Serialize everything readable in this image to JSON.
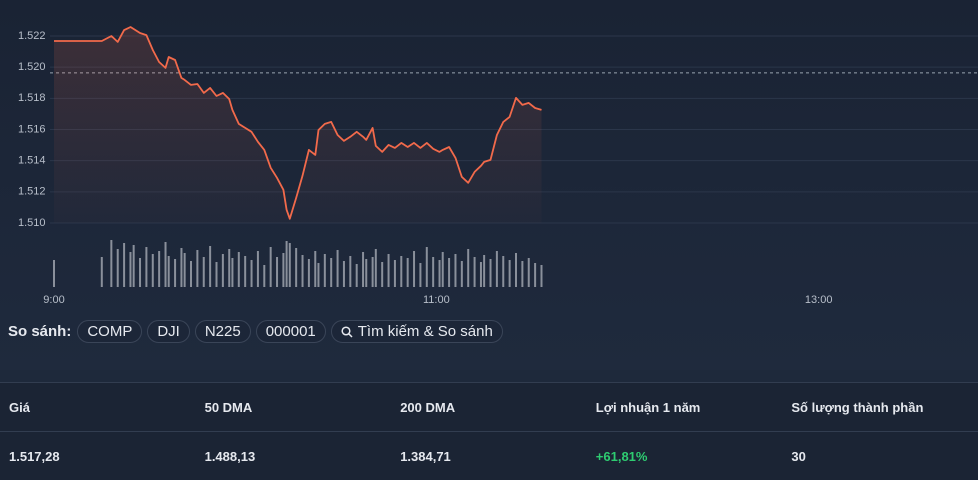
{
  "chart_data": {
    "type": "line",
    "x": [
      "9:00",
      "9:15",
      "9:18",
      "9:20",
      "9:22",
      "9:24",
      "9:25",
      "9:27",
      "9:29",
      "9:31",
      "9:33",
      "9:35",
      "9:36",
      "9:38",
      "9:40",
      "9:41",
      "9:43",
      "9:45",
      "9:47",
      "9:49",
      "9:51",
      "9:53",
      "9:55",
      "9:56",
      "9:58",
      "10:00",
      "10:02",
      "10:04",
      "10:06",
      "10:08",
      "10:10",
      "10:12",
      "10:13",
      "10:14",
      "10:16",
      "10:18",
      "10:20",
      "10:22",
      "10:23",
      "10:25",
      "10:27",
      "10:29",
      "10:31",
      "10:33",
      "10:35",
      "10:37",
      "10:38",
      "10:40",
      "10:41",
      "10:43",
      "10:45",
      "10:47",
      "10:49",
      "10:51",
      "10:53",
      "10:55",
      "10:57",
      "10:59",
      "11:01",
      "11:02",
      "11:04",
      "11:06",
      "11:08",
      "11:10",
      "11:12",
      "11:14",
      "11:15",
      "11:17",
      "11:19",
      "11:21",
      "11:23",
      "11:25",
      "11:27",
      "11:29",
      "11:31",
      "11:33"
    ],
    "series": [
      {
        "color": "#f26a4b",
        "values": [
          1521.68,
          1521.68,
          1522.0,
          1521.62,
          1522.38,
          1522.58,
          1522.45,
          1522.19,
          1522.06,
          1521.1,
          1520.33,
          1519.95,
          1520.65,
          1520.46,
          1519.31,
          1519.18,
          1518.86,
          1518.92,
          1518.35,
          1518.67,
          1518.15,
          1518.35,
          1517.96,
          1517.26,
          1516.36,
          1516.1,
          1515.85,
          1515.21,
          1514.69,
          1513.54,
          1512.9,
          1512.13,
          1510.85,
          1510.27,
          1511.62,
          1513.03,
          1514.69,
          1514.37,
          1515.97,
          1516.36,
          1516.49,
          1515.65,
          1515.27,
          1515.53,
          1515.85,
          1515.53,
          1515.33,
          1516.1,
          1514.95,
          1514.56,
          1515.01,
          1514.82,
          1515.14,
          1514.88,
          1515.14,
          1514.82,
          1515.14,
          1514.76,
          1514.56,
          1514.69,
          1514.88,
          1514.18,
          1512.96,
          1512.58,
          1513.28,
          1513.67,
          1513.92,
          1514.05,
          1515.65,
          1516.49,
          1516.81,
          1518.03,
          1517.58,
          1517.71,
          1517.38,
          1517.26
        ]
      },
      {
        "color": "#8a909b",
        "axis": "volume",
        "values": [
          27,
          30,
          47,
          38,
          44,
          35,
          42,
          29,
          40,
          33,
          36,
          45,
          31,
          28,
          39,
          34,
          26,
          37,
          30,
          41,
          25,
          33,
          38,
          29,
          35,
          31,
          27,
          36,
          22,
          40,
          30,
          34,
          46,
          44,
          39,
          32,
          28,
          36,
          24,
          33,
          29,
          37,
          26,
          31,
          23,
          35,
          28,
          30,
          38,
          25,
          33,
          27,
          31,
          29,
          36,
          24,
          40,
          30,
          27,
          35,
          29,
          33,
          26,
          38,
          30,
          25,
          32,
          28,
          36,
          31,
          27,
          34,
          26,
          29,
          24,
          22
        ]
      }
    ],
    "reference_line": 1519.63,
    "xlim": [
      "9:00",
      "13:50"
    ],
    "xticks": [
      "9:00",
      "11:00",
      "13:00"
    ],
    "ylim": [
      1510,
      1522
    ],
    "yticks": [
      {
        "value": 1510,
        "label": "1.510"
      },
      {
        "value": 1512,
        "label": "1.512"
      },
      {
        "value": 1514,
        "label": "1.514"
      },
      {
        "value": 1516,
        "label": "1.516"
      },
      {
        "value": 1518,
        "label": "1.518"
      },
      {
        "value": 1520,
        "label": "1.520"
      },
      {
        "value": 1522,
        "label": "1.522"
      }
    ],
    "volume_lim": [
      0,
      50
    ],
    "grid": true
  },
  "compare": {
    "label": "So sánh:",
    "chips": [
      "COMP",
      "DJI",
      "N225",
      "000001"
    ],
    "search": "Tìm kiếm & So sánh"
  },
  "stats": {
    "headers": [
      "Giá",
      "50 DMA",
      "200 DMA",
      "Lợi nhuận 1 năm",
      "Số lượng thành phần"
    ],
    "values": [
      "1.517,28",
      "1.488,13",
      "1.384,71",
      "+61,81%",
      "30"
    ]
  }
}
